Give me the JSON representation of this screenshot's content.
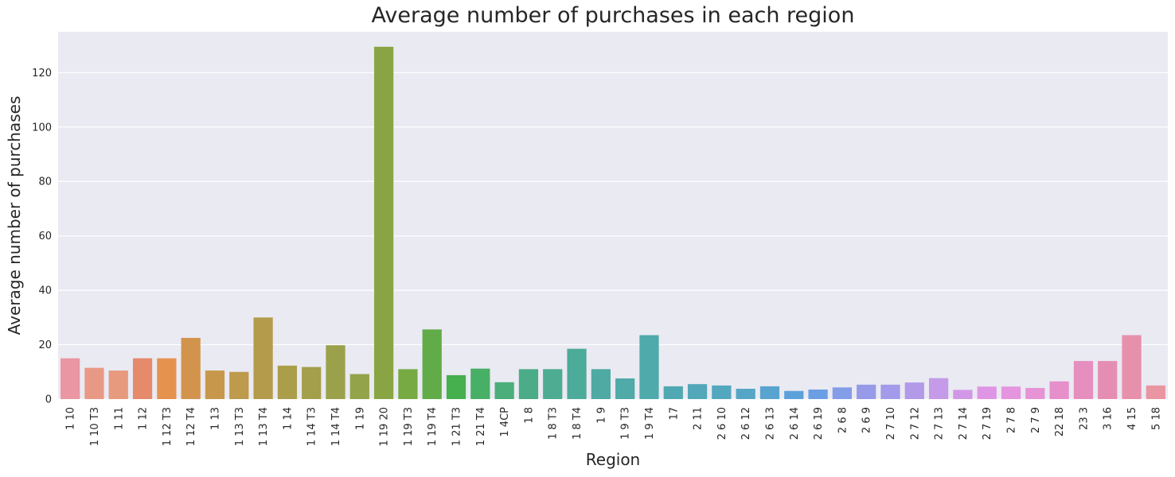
{
  "chart_data": {
    "type": "bar",
    "title": "Average number of purchases in each region",
    "xlabel": "Region",
    "ylabel": "Average number of purchases",
    "ylim": [
      0,
      135
    ],
    "yticks": [
      0,
      20,
      40,
      60,
      80,
      100,
      120
    ],
    "grid": true,
    "legend": "none",
    "categories": [
      "1 10",
      "1 10 T3",
      "1 11",
      "1 12",
      "1 12 T3",
      "1 12 T4",
      "1 13",
      "1 13 T3",
      "1 13 T4",
      "1 14",
      "1 14 T3",
      "1 14 T4",
      "1 19",
      "1 19 20",
      "1 19 T3",
      "1 19 T4",
      "1 21 T3",
      "1 21 T4",
      "1 4CP",
      "1 8",
      "1 8 T3",
      "1 8 T4",
      "1 9",
      "1 9 T3",
      "1 9 T4",
      "17",
      "2 11",
      "2 6 10",
      "2 6 12",
      "2 6 13",
      "2 6 14",
      "2 6 19",
      "2 6 8",
      "2 6 9",
      "2 7 10",
      "2 7 12",
      "2 7 13",
      "2 7 14",
      "2 7 19",
      "2 7 8",
      "2 7 9",
      "22 18",
      "23 3",
      "3 16",
      "4 15",
      "5 18"
    ],
    "values": [
      15,
      11.5,
      10.5,
      15,
      15,
      22.5,
      10.5,
      10,
      30,
      12.3,
      11.8,
      19.8,
      9.2,
      129.5,
      11,
      25.6,
      8.8,
      11.2,
      6.2,
      11,
      11,
      18.5,
      11,
      7.6,
      23.5,
      4.7,
      5.5,
      5,
      3.8,
      4.7,
      3,
      3.5,
      4.3,
      5.3,
      5.3,
      6.1,
      7.7,
      3.4,
      4.6,
      4.6,
      4.1,
      6.5,
      14,
      14,
      23.5,
      5
    ],
    "colors": [
      "#ea96a3",
      "#e89986",
      "#e79a7e",
      "#e68a6c",
      "#e5924f",
      "#d2944d",
      "#c7984c",
      "#bd9a4c",
      "#b49b4c",
      "#ab9e4b",
      "#a39f4b",
      "#9aa14a",
      "#92a34a",
      "#89a543",
      "#78aa44",
      "#61ac48",
      "#46b04e",
      "#48af66",
      "#4bae7b",
      "#4bac87",
      "#4dac91",
      "#4dab9a",
      "#4eaaa2",
      "#4faaa8",
      "#4faaac",
      "#50a9b2",
      "#52a8b8",
      "#53a7bf",
      "#55a6c6",
      "#58a4cf",
      "#5da1da",
      "#6c9ee4",
      "#849de8",
      "#969ae9",
      "#a39ae9",
      "#b29ae8",
      "#c59ae8",
      "#d297e7",
      "#df95e6",
      "#e594e0",
      "#e694d6",
      "#e68fcb",
      "#e68fbe",
      "#e58eb4",
      "#e790ab",
      "#e996a2"
    ]
  }
}
